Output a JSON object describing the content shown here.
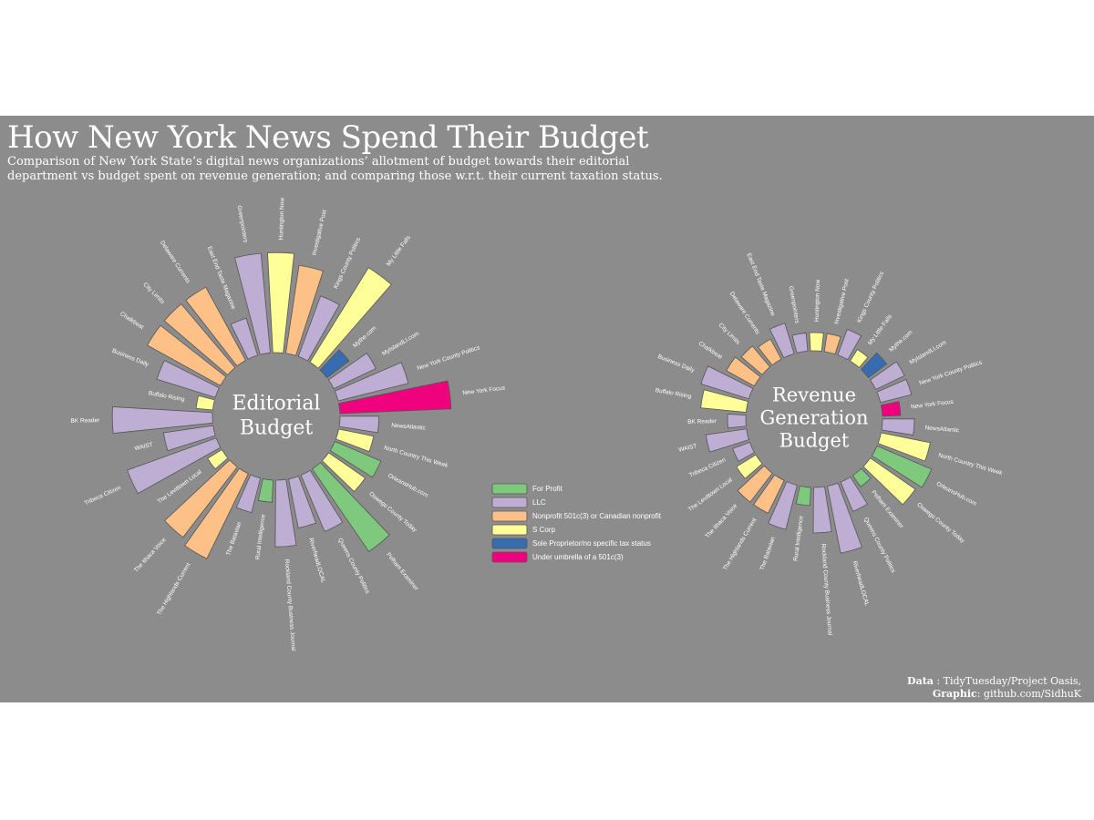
{
  "header": {
    "title": "How New York News Spend Their Budget",
    "subtitle": "Comparison of  New York State’s digital news organizations’ allotment of budget towards their editorial department vs budget spent on revenue generation; and comparing  those w.r.t. their current taxation status."
  },
  "caption": {
    "data_label": "Data",
    "data_value": " : TidyTuesday/Project Oasis,",
    "graphic_label": "Graphic",
    "graphic_value": ": github.com/SidhuK"
  },
  "colors": {
    "background": "#8c8c8c",
    "For Profit": "#7fc97f",
    "LLC": "#beaed4",
    "Nonprofit 501c(3) or Canadian nonprofit": "#fdc086",
    "S Corp": "#ffff99",
    "Sole Proprietor/no specific tax status": "#386cb0",
    "Under umbrella of a 501c(3)": "#f0027f"
  },
  "chart_data": [
    {
      "type": "bar",
      "polar": true,
      "center_label": [
        "Editorial",
        "Budget"
      ],
      "categories": [
        "Greenpointers",
        "Huntington Now",
        "Investigative Post",
        "Kings County Politics",
        "My Little Falls",
        "Mythe.com",
        "MyIslandLI.com",
        "New York County Politics",
        "New York Focus",
        "NewsAtlantic",
        "North Country This Week",
        "OrleansHub.com",
        "Oswego County Today",
        "Pelham Examiner",
        "Queens County Politics",
        "RiverheadLOCAL",
        "Rockland County Business Journal",
        "Rural Intelligence",
        "The Batavian",
        "The Highlands Current",
        "The Ithaca Voice",
        "The Levittown Local",
        "Tribeca Citizen",
        "WAIST",
        "BK Reader",
        "Buffalo Rising",
        "Business Daily",
        "Chalkbeat",
        "City Limits",
        "Delaware Currents",
        "East End Taste Magazine"
      ],
      "tax_status": [
        "LLC",
        "S Corp",
        "Nonprofit 501c(3) or Canadian nonprofit",
        "LLC",
        "S Corp",
        "Sole Proprietor/no specific tax status",
        "LLC",
        "LLC",
        "Under umbrella of a 501c(3)",
        "LLC",
        "S Corp",
        "For Profit",
        "S Corp",
        "For Profit",
        "LLC",
        "LLC",
        "LLC",
        "For Profit",
        "LLC",
        "Nonprofit 501c(3) or Canadian nonprofit",
        "Nonprofit 501c(3) or Canadian nonprofit",
        "S Corp",
        "LLC",
        "LLC",
        "LLC",
        "S Corp",
        "LLC",
        "Nonprofit 501c(3) or Canadian nonprofit",
        "Nonprofit 501c(3) or Canadian nonprofit",
        "Nonprofit 501c(3) or Canadian nonprofit",
        "LLC"
      ],
      "values": [
        90,
        90,
        80,
        58,
        100,
        25,
        42,
        65,
        100,
        35,
        32,
        45,
        40,
        90,
        55,
        45,
        60,
        20,
        32,
        85,
        80,
        15,
        85,
        45,
        90,
        15,
        55,
        75,
        75,
        75,
        35
      ]
    },
    {
      "type": "bar",
      "polar": true,
      "center_label": [
        "Revenue",
        "Generation",
        "Budget"
      ],
      "categories": [
        "Greenpointers",
        "Huntington Now",
        "Investigative Post",
        "Kings County Politics",
        "My Little Falls",
        "Mythe.com",
        "MyIslandLI.com",
        "New York County Politics",
        "New York Focus",
        "NewsAtlantic",
        "North Country This Week",
        "OrleansHub.com",
        "Oswego County Today",
        "Pelham Examiner",
        "Queens County Politics",
        "RiverheadLOCAL",
        "Rockland County Business Journal",
        "Rural Intelligence",
        "The Batavian",
        "The Highlands Current",
        "The Ithaca Voice",
        "The Levittown Local",
        "Tribeca Citizen",
        "WAIST",
        "BK Reader",
        "Buffalo Rising",
        "Business Daily",
        "Chalkbeat",
        "City Limits",
        "Delaware Currents",
        "East End Taste Magazine"
      ],
      "tax_status": [
        "LLC",
        "S Corp",
        "Nonprofit 501c(3) or Canadian nonprofit",
        "LLC",
        "S Corp",
        "Sole Proprietor/no specific tax status",
        "LLC",
        "LLC",
        "Under umbrella of a 501c(3)",
        "LLC",
        "S Corp",
        "For Profit",
        "S Corp",
        "For Profit",
        "LLC",
        "LLC",
        "LLC",
        "For Profit",
        "LLC",
        "Nonprofit 501c(3) or Canadian nonprofit",
        "Nonprofit 501c(3) or Canadian nonprofit",
        "S Corp",
        "LLC",
        "LLC",
        "LLC",
        "S Corp",
        "LLC",
        "Nonprofit 501c(3) or Canadian nonprofit",
        "Nonprofit 501c(3) or Canadian nonprofit",
        "Nonprofit 501c(3) or Canadian nonprofit",
        "LLC"
      ],
      "values": [
        20,
        20,
        20,
        30,
        15,
        25,
        35,
        35,
        20,
        35,
        55,
        65,
        60,
        15,
        35,
        75,
        50,
        20,
        50,
        40,
        40,
        25,
        20,
        45,
        20,
        50,
        55,
        35,
        30,
        25,
        35
      ]
    }
  ],
  "legend": {
    "position": "center-bottom",
    "items": [
      "For Profit",
      "LLC",
      "Nonprofit 501c(3) or Canadian nonprofit",
      "S Corp",
      "Sole Proprietor/no specific tax status",
      "Under umbrella of a 501c(3)"
    ]
  }
}
